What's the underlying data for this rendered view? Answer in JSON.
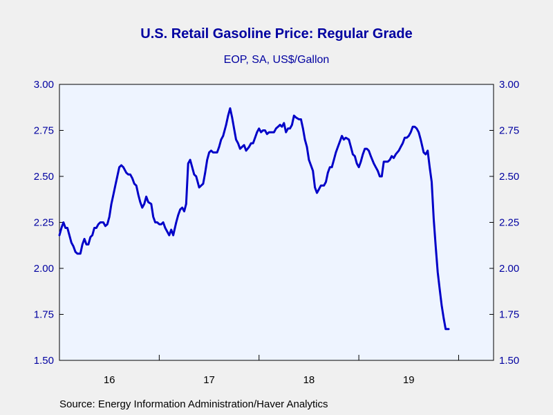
{
  "chart_data": {
    "type": "line",
    "title": "U.S. Retail Gasoline Price: Regular Grade",
    "subtitle": "EOP, SA, US$/Gallon",
    "source": "Source:  Energy Information Administration/Haver Analytics",
    "ylim": [
      1.5,
      3.0
    ],
    "yticks": [
      "3.00",
      "2.75",
      "2.50",
      "2.25",
      "2.00",
      "1.75",
      "1.50"
    ],
    "xlim": [
      2016.0,
      2020.35
    ],
    "xticks": [
      {
        "label": "16",
        "x": 2016.5
      },
      {
        "label": "17",
        "x": 2017.5
      },
      {
        "label": "18",
        "x": 2018.5
      },
      {
        "label": "19",
        "x": 2019.5
      }
    ],
    "year_boundaries": [
      2017,
      2018,
      2019,
      2020
    ],
    "grid": false,
    "colors": {
      "line": "#0000c8",
      "plot_bg": "#eef4ff",
      "axis_text": "#0000a0",
      "page_bg": "#f0f0f0"
    },
    "series": [
      {
        "values": [
          [
            2016.0,
            2.18
          ],
          [
            2016.02,
            2.22
          ],
          [
            2016.04,
            2.25
          ],
          [
            2016.06,
            2.22
          ],
          [
            2016.08,
            2.22
          ],
          [
            2016.1,
            2.18
          ],
          [
            2016.12,
            2.14
          ],
          [
            2016.14,
            2.12
          ],
          [
            2016.16,
            2.09
          ],
          [
            2016.18,
            2.08
          ],
          [
            2016.21,
            2.08
          ],
          [
            2016.23,
            2.13
          ],
          [
            2016.25,
            2.16
          ],
          [
            2016.27,
            2.13
          ],
          [
            2016.29,
            2.13
          ],
          [
            2016.31,
            2.17
          ],
          [
            2016.33,
            2.18
          ],
          [
            2016.35,
            2.22
          ],
          [
            2016.37,
            2.22
          ],
          [
            2016.39,
            2.24
          ],
          [
            2016.41,
            2.25
          ],
          [
            2016.44,
            2.25
          ],
          [
            2016.46,
            2.23
          ],
          [
            2016.48,
            2.24
          ],
          [
            2016.5,
            2.28
          ],
          [
            2016.52,
            2.35
          ],
          [
            2016.54,
            2.4
          ],
          [
            2016.56,
            2.45
          ],
          [
            2016.58,
            2.5
          ],
          [
            2016.6,
            2.55
          ],
          [
            2016.62,
            2.56
          ],
          [
            2016.64,
            2.55
          ],
          [
            2016.67,
            2.52
          ],
          [
            2016.69,
            2.51
          ],
          [
            2016.71,
            2.51
          ],
          [
            2016.73,
            2.49
          ],
          [
            2016.75,
            2.46
          ],
          [
            2016.77,
            2.45
          ],
          [
            2016.79,
            2.4
          ],
          [
            2016.81,
            2.36
          ],
          [
            2016.83,
            2.33
          ],
          [
            2016.85,
            2.35
          ],
          [
            2016.87,
            2.39
          ],
          [
            2016.89,
            2.36
          ],
          [
            2016.92,
            2.35
          ],
          [
            2016.94,
            2.28
          ],
          [
            2016.96,
            2.25
          ],
          [
            2016.98,
            2.25
          ],
          [
            2017.0,
            2.24
          ],
          [
            2017.02,
            2.24
          ],
          [
            2017.04,
            2.25
          ],
          [
            2017.06,
            2.22
          ],
          [
            2017.08,
            2.2
          ],
          [
            2017.1,
            2.18
          ],
          [
            2017.12,
            2.21
          ],
          [
            2017.14,
            2.18
          ],
          [
            2017.17,
            2.25
          ],
          [
            2017.19,
            2.29
          ],
          [
            2017.21,
            2.32
          ],
          [
            2017.23,
            2.33
          ],
          [
            2017.25,
            2.31
          ],
          [
            2017.27,
            2.35
          ],
          [
            2017.29,
            2.57
          ],
          [
            2017.31,
            2.59
          ],
          [
            2017.33,
            2.55
          ],
          [
            2017.35,
            2.51
          ],
          [
            2017.37,
            2.5
          ],
          [
            2017.4,
            2.44
          ],
          [
            2017.42,
            2.45
          ],
          [
            2017.44,
            2.46
          ],
          [
            2017.46,
            2.52
          ],
          [
            2017.48,
            2.59
          ],
          [
            2017.5,
            2.63
          ],
          [
            2017.52,
            2.64
          ],
          [
            2017.54,
            2.63
          ],
          [
            2017.56,
            2.63
          ],
          [
            2017.58,
            2.63
          ],
          [
            2017.6,
            2.66
          ],
          [
            2017.62,
            2.7
          ],
          [
            2017.64,
            2.72
          ],
          [
            2017.67,
            2.78
          ],
          [
            2017.69,
            2.83
          ],
          [
            2017.71,
            2.87
          ],
          [
            2017.73,
            2.82
          ],
          [
            2017.75,
            2.76
          ],
          [
            2017.77,
            2.7
          ],
          [
            2017.79,
            2.68
          ],
          [
            2017.81,
            2.65
          ],
          [
            2017.83,
            2.66
          ],
          [
            2017.85,
            2.67
          ],
          [
            2017.87,
            2.64
          ],
          [
            2017.9,
            2.66
          ],
          [
            2017.92,
            2.68
          ],
          [
            2017.94,
            2.68
          ],
          [
            2017.96,
            2.71
          ],
          [
            2017.98,
            2.74
          ],
          [
            2018.0,
            2.76
          ],
          [
            2018.02,
            2.74
          ],
          [
            2018.04,
            2.75
          ],
          [
            2018.06,
            2.75
          ],
          [
            2018.08,
            2.73
          ],
          [
            2018.1,
            2.74
          ],
          [
            2018.12,
            2.74
          ],
          [
            2018.15,
            2.74
          ],
          [
            2018.17,
            2.76
          ],
          [
            2018.19,
            2.77
          ],
          [
            2018.21,
            2.78
          ],
          [
            2018.23,
            2.77
          ],
          [
            2018.25,
            2.79
          ],
          [
            2018.27,
            2.74
          ],
          [
            2018.29,
            2.76
          ],
          [
            2018.31,
            2.76
          ],
          [
            2018.33,
            2.78
          ],
          [
            2018.35,
            2.83
          ],
          [
            2018.37,
            2.82
          ],
          [
            2018.4,
            2.81
          ],
          [
            2018.42,
            2.81
          ],
          [
            2018.44,
            2.76
          ],
          [
            2018.46,
            2.7
          ],
          [
            2018.48,
            2.66
          ],
          [
            2018.5,
            2.59
          ],
          [
            2018.52,
            2.56
          ],
          [
            2018.54,
            2.53
          ],
          [
            2018.56,
            2.44
          ],
          [
            2018.58,
            2.41
          ],
          [
            2018.6,
            2.43
          ],
          [
            2018.62,
            2.45
          ],
          [
            2018.65,
            2.45
          ],
          [
            2018.67,
            2.47
          ],
          [
            2018.69,
            2.52
          ],
          [
            2018.71,
            2.55
          ],
          [
            2018.73,
            2.55
          ],
          [
            2018.75,
            2.59
          ],
          [
            2018.77,
            2.63
          ],
          [
            2018.79,
            2.66
          ],
          [
            2018.81,
            2.69
          ],
          [
            2018.83,
            2.72
          ],
          [
            2018.85,
            2.7
          ],
          [
            2018.87,
            2.71
          ],
          [
            2018.9,
            2.7
          ],
          [
            2018.92,
            2.66
          ],
          [
            2018.94,
            2.62
          ],
          [
            2018.96,
            2.61
          ],
          [
            2018.98,
            2.57
          ],
          [
            2019.0,
            2.55
          ],
          [
            2019.02,
            2.58
          ],
          [
            2019.04,
            2.62
          ],
          [
            2019.06,
            2.65
          ],
          [
            2019.08,
            2.65
          ],
          [
            2019.1,
            2.64
          ],
          [
            2019.12,
            2.61
          ],
          [
            2019.15,
            2.57
          ],
          [
            2019.17,
            2.55
          ],
          [
            2019.19,
            2.53
          ],
          [
            2019.21,
            2.5
          ],
          [
            2019.23,
            2.5
          ],
          [
            2019.25,
            2.58
          ],
          [
            2019.27,
            2.58
          ],
          [
            2019.29,
            2.58
          ],
          [
            2019.31,
            2.59
          ],
          [
            2019.33,
            2.61
          ],
          [
            2019.35,
            2.6
          ],
          [
            2019.37,
            2.62
          ],
          [
            2019.4,
            2.64
          ],
          [
            2019.42,
            2.66
          ],
          [
            2019.44,
            2.68
          ],
          [
            2019.46,
            2.71
          ],
          [
            2019.48,
            2.71
          ],
          [
            2019.5,
            2.72
          ],
          [
            2019.52,
            2.74
          ],
          [
            2019.54,
            2.77
          ],
          [
            2019.56,
            2.77
          ],
          [
            2019.58,
            2.76
          ],
          [
            2019.6,
            2.74
          ],
          [
            2019.62,
            2.7
          ],
          [
            2019.65,
            2.63
          ],
          [
            2019.67,
            2.62
          ],
          [
            2019.69,
            2.64
          ],
          [
            2019.71,
            2.55
          ],
          [
            2019.73,
            2.47
          ],
          [
            2019.75,
            2.27
          ],
          [
            2019.77,
            2.12
          ],
          [
            2019.79,
            1.98
          ],
          [
            2019.81,
            1.89
          ],
          [
            2019.83,
            1.8
          ],
          [
            2019.85,
            1.73
          ],
          [
            2019.87,
            1.67
          ],
          [
            2019.9,
            1.67
          ]
        ]
      }
    ]
  }
}
